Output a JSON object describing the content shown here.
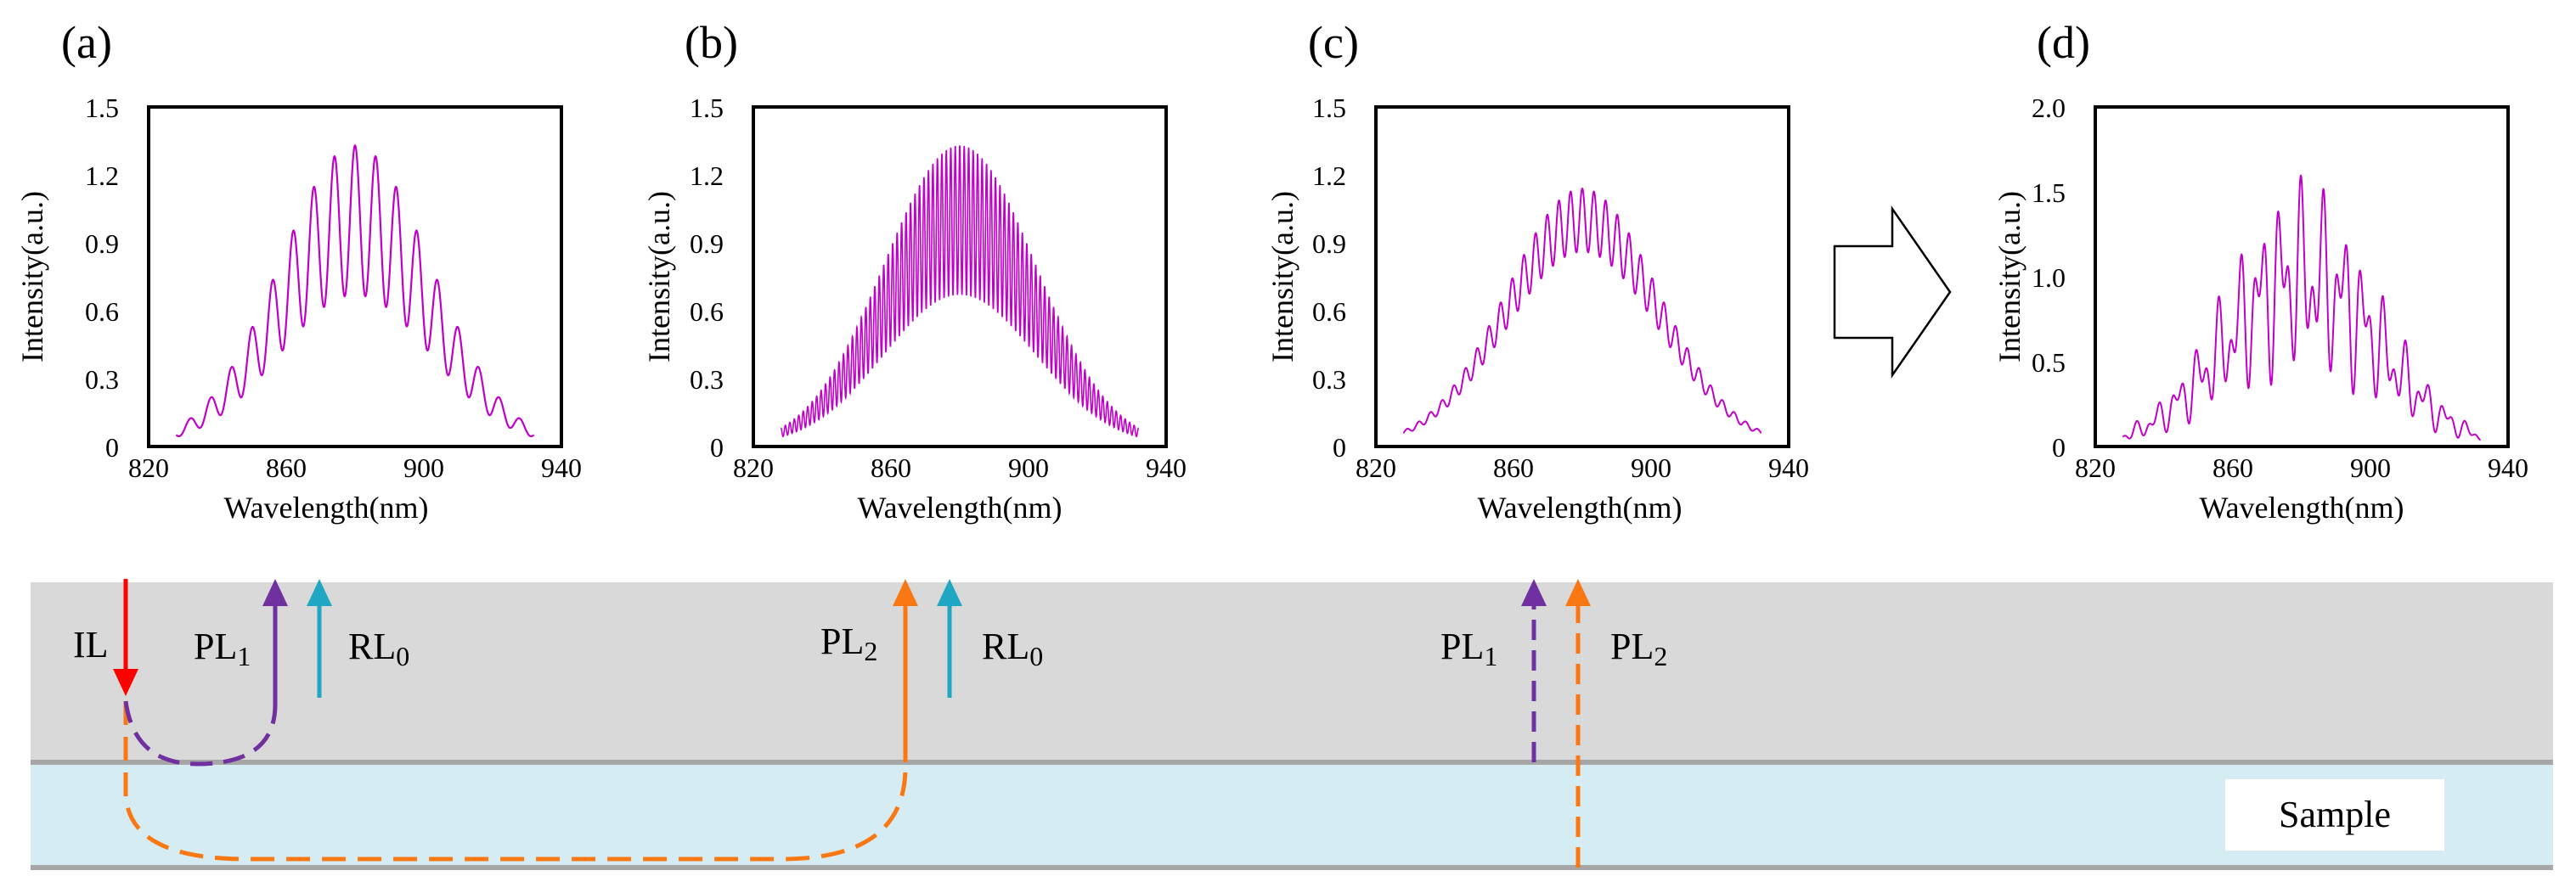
{
  "figure": {
    "panels": [
      {
        "label": "(a)"
      },
      {
        "label": "(b)"
      },
      {
        "label": "(c)"
      },
      {
        "label": "(d)"
      }
    ],
    "arrow_description": "hollow right-pointing arrow between panels c and d",
    "diagram": {
      "beams": [
        {
          "id": "IL",
          "text": "IL"
        },
        {
          "id": "PL1_left",
          "text": "PL",
          "sub": "1"
        },
        {
          "id": "RL0_left",
          "text": "RL",
          "sub": "0"
        },
        {
          "id": "PL2_mid",
          "text": "PL",
          "sub": "2"
        },
        {
          "id": "RL0_mid",
          "text": "RL",
          "sub": "0"
        },
        {
          "id": "PL1_right",
          "text": "PL",
          "sub": "1"
        },
        {
          "id": "PL2_right",
          "text": "PL",
          "sub": "2"
        }
      ],
      "sample_label": "Sample",
      "colors": {
        "top_layer": "#d9d9d9",
        "sample_layer": "#d5edf2",
        "interface_line": "#a6a6a6",
        "IL": "#ff0000",
        "PL1": "#7030a0",
        "PL2": "#fa7814",
        "RL0": "#1fa7c4"
      }
    }
  },
  "chart_data": [
    {
      "type": "line",
      "panel": "(a)",
      "xlabel": "Wavelength(nm)",
      "ylabel": "Intensity(a.u.)",
      "xlim": [
        820,
        940
      ],
      "ylim": [
        0,
        1.5
      ],
      "xticks": [
        "820",
        "860",
        "900",
        "940"
      ],
      "yticks": [
        "0",
        "0.3",
        "0.6",
        "0.9",
        "1.2",
        "1.5"
      ],
      "color": "#c000c8",
      "series_model": {
        "center": 880,
        "sigma": 22,
        "amplitude": 1.0,
        "mod_depth": 0.33,
        "fringe_period": 6.0,
        "x_start": 828,
        "x_end": 932
      },
      "description": "Gaussian envelope peaked at ~880 nm (~1.0) with wide interference fringes, maxima near 1.32"
    },
    {
      "type": "line",
      "panel": "(b)",
      "xlabel": "Wavelength(nm)",
      "ylabel": "Intensity(a.u.)",
      "xlim": [
        820,
        940
      ],
      "ylim": [
        0,
        1.5
      ],
      "xticks": [
        "820",
        "860",
        "900",
        "940"
      ],
      "yticks": [
        "0",
        "0.3",
        "0.6",
        "0.9",
        "1.2",
        "1.5"
      ],
      "color": "#c000c8",
      "series_model": {
        "center": 880,
        "sigma": 22,
        "amplitude": 1.0,
        "mod_depth": 0.33,
        "fringe_period": 1.3,
        "x_start": 828,
        "x_end": 932
      },
      "description": "Gaussian envelope peaked at ~880 nm with dense fringes between ~0.67 and ~1.33"
    },
    {
      "type": "line",
      "panel": "(c)",
      "xlabel": "Wavelength(nm)",
      "ylabel": "Intensity(a.u.)",
      "xlim": [
        820,
        940
      ],
      "ylim": [
        0,
        1.5
      ],
      "xticks": [
        "820",
        "860",
        "900",
        "940"
      ],
      "yticks": [
        "0",
        "0.3",
        "0.6",
        "0.9",
        "1.2",
        "1.5"
      ],
      "color": "#c000c8",
      "series_model": {
        "center": 880,
        "sigma": 22,
        "amplitude": 1.0,
        "mod_depth": 0.14,
        "fringe_period": 3.4,
        "x_start": 828,
        "x_end": 932
      },
      "description": "Gaussian envelope peaked at ~880 nm with weak fringes, maxima near 1.15"
    },
    {
      "type": "line",
      "panel": "(d)",
      "xlabel": "Wavelength(nm)",
      "ylabel": "Intensity(a.u.)",
      "xlim": [
        820,
        940
      ],
      "ylim": [
        0,
        2.0
      ],
      "xticks": [
        "820",
        "860",
        "900",
        "940"
      ],
      "yticks": [
        "0",
        "0.5",
        "1.0",
        "1.5",
        "2.0"
      ],
      "color": "#c000c8",
      "series_model": {
        "center": 880,
        "sigma": 22,
        "amplitude": 1.0,
        "mod_depth": 0.33,
        "fringe_period": 6.0,
        "fringe_period_2": 3.4,
        "x_start": 828,
        "x_end": 932
      },
      "description": "Superposition of two fringe patterns; irregular fringes peaking near 1.6"
    }
  ]
}
